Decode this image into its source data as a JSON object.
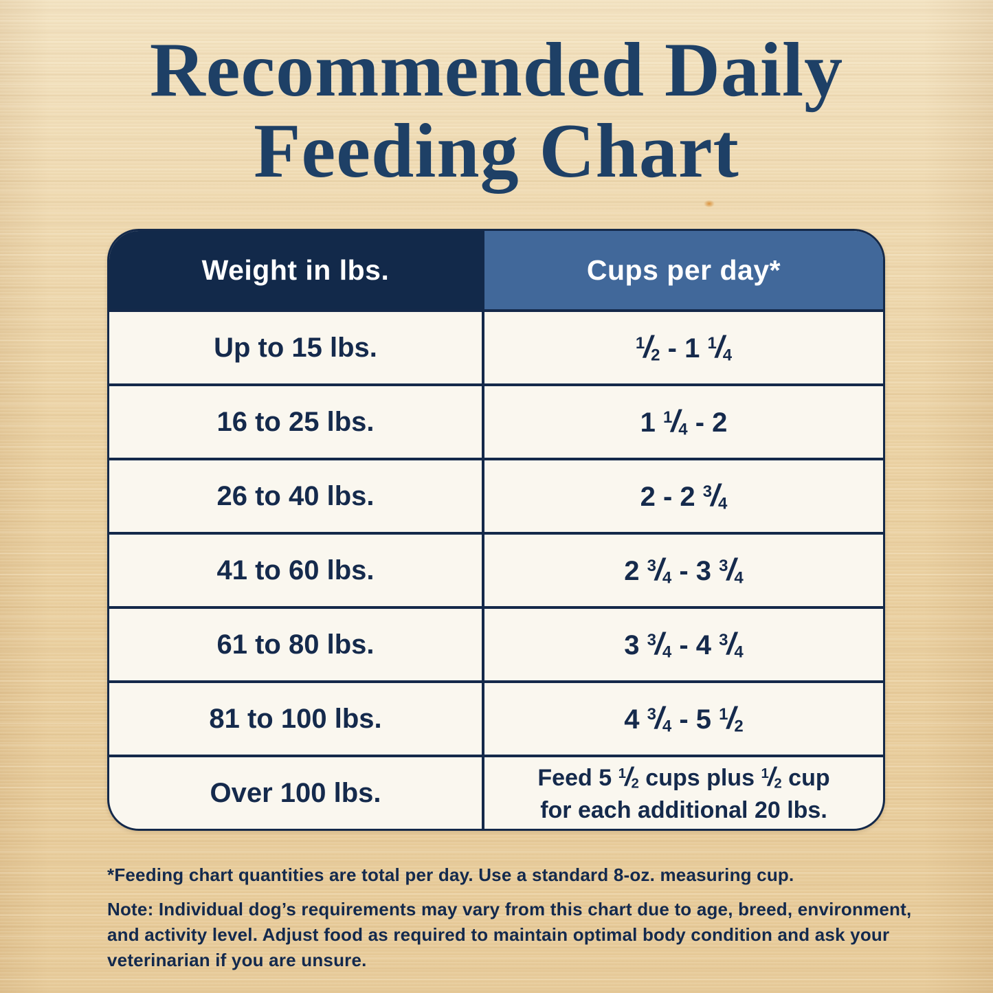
{
  "page": {
    "title_line1": "Recommended Daily",
    "title_line2": "Feeding Chart"
  },
  "table": {
    "col1_header": "Weight in lbs.",
    "col2_header": "Cups per day*",
    "rows": [
      {
        "weight": "Up to 15 lbs.",
        "cups": "1/2 - 1 1/4"
      },
      {
        "weight": "16 to 25 lbs.",
        "cups": "1 1/4 - 2"
      },
      {
        "weight": "26 to 40 lbs.",
        "cups": "2 - 2 3/4"
      },
      {
        "weight": "41 to 60 lbs.",
        "cups": "2 3/4 - 3 3/4"
      },
      {
        "weight": "61 to 80 lbs.",
        "cups": "3 3/4 - 4 3/4"
      },
      {
        "weight": "81 to 100 lbs.",
        "cups": "4 3/4 - 5 1/2"
      },
      {
        "weight": "Over 100 lbs.",
        "cups": "Feed 5 1/2 cups plus 1/2 cup\nfor each additional 20 lbs."
      }
    ]
  },
  "footnotes": {
    "asterisk": "*Feeding chart quantities are total per day. Use a standard 8-oz. measuring cup.",
    "note_label": "Note:",
    "note_text": "Individual dog’s requirements may vary from this chart due to age, breed, environment, and activity level. Adjust food as required to maintain optimal body condition and ask your veterinarian if you are unsure."
  },
  "colors": {
    "title_navy": "#1e4066",
    "header_dark_navy": "#12294a",
    "header_steel_blue": "#41689a",
    "cell_cream": "#faf7ef",
    "border_navy": "#14294a",
    "text_navy": "#152a4c",
    "wood_tan": "#ebd2a4"
  },
  "chart_data": {
    "type": "table",
    "title": "Recommended Daily Feeding Chart",
    "columns": [
      "Weight in lbs.",
      "Cups per day*"
    ],
    "rows": [
      [
        "Up to 15 lbs.",
        "1/2 - 1 1/4"
      ],
      [
        "16 to 25 lbs.",
        "1 1/4 - 2"
      ],
      [
        "26 to 40 lbs.",
        "2 - 2 3/4"
      ],
      [
        "41 to 60 lbs.",
        "2 3/4 - 3 3/4"
      ],
      [
        "61 to 80 lbs.",
        "3 3/4 - 4 3/4"
      ],
      [
        "81 to 100 lbs.",
        "4 3/4 - 5 1/2"
      ],
      [
        "Over 100 lbs.",
        "Feed 5 1/2 cups plus 1/2 cup for each additional 20 lbs."
      ]
    ],
    "footnote": "*Feeding chart quantities are total per day. Use a standard 8-oz. measuring cup.",
    "note": "Note: Individual dog’s requirements may vary from this chart due to age, breed, environment, and activity level. Adjust food as required to maintain optimal body condition and ask your veterinarian if you are unsure."
  }
}
